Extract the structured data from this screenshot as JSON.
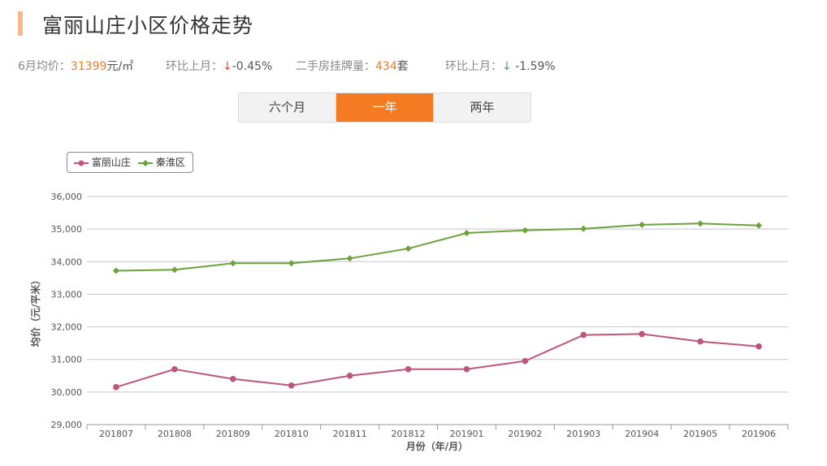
{
  "header": {
    "title": "富丽山庄小区价格走势"
  },
  "stats": {
    "avg_label": "6月均价：",
    "avg_value": "31399",
    "avg_unit": "元/㎡",
    "mom1_label": "环比上月：",
    "mom1_arrow": "↓",
    "mom1_value": "-0.45%",
    "listing_label": "二手房挂牌量：",
    "listing_value": "434",
    "listing_unit": "套",
    "mom2_label": "环比上月：",
    "mom2_arrow": "↓",
    "mom2_value": "-1.59%",
    "colors": {
      "accent": "#f07e2a",
      "down_red": "#e8413c",
      "down_green": "#3aa55a"
    }
  },
  "tabs": [
    {
      "label": "六个月",
      "active": false
    },
    {
      "label": "一年",
      "active": true
    },
    {
      "label": "两年",
      "active": false
    }
  ],
  "chart_data": {
    "type": "line",
    "x": [
      "201807",
      "201808",
      "201809",
      "201810",
      "201811",
      "201812",
      "201901",
      "201902",
      "201903",
      "201904",
      "201905",
      "201906"
    ],
    "series": [
      {
        "name": "富丽山庄",
        "color": "#c0557a",
        "values": [
          30150,
          30700,
          30400,
          30200,
          30500,
          30700,
          30700,
          30950,
          31750,
          31780,
          31550,
          31400
        ]
      },
      {
        "name": "秦淮区",
        "color": "#6aa33a",
        "values": [
          33720,
          33750,
          33950,
          33950,
          34100,
          34400,
          34880,
          34960,
          35010,
          35130,
          35170,
          35110
        ]
      }
    ],
    "ylim": [
      29000,
      36000
    ],
    "yticks": [
      "29,000",
      "30,000",
      "31,000",
      "32,000",
      "33,000",
      "34,000",
      "35,000",
      "36,000"
    ],
    "xlabel": "月份（年/月）",
    "ylabel": "均价（元/平米）",
    "legend": "top-left",
    "grid": true
  }
}
